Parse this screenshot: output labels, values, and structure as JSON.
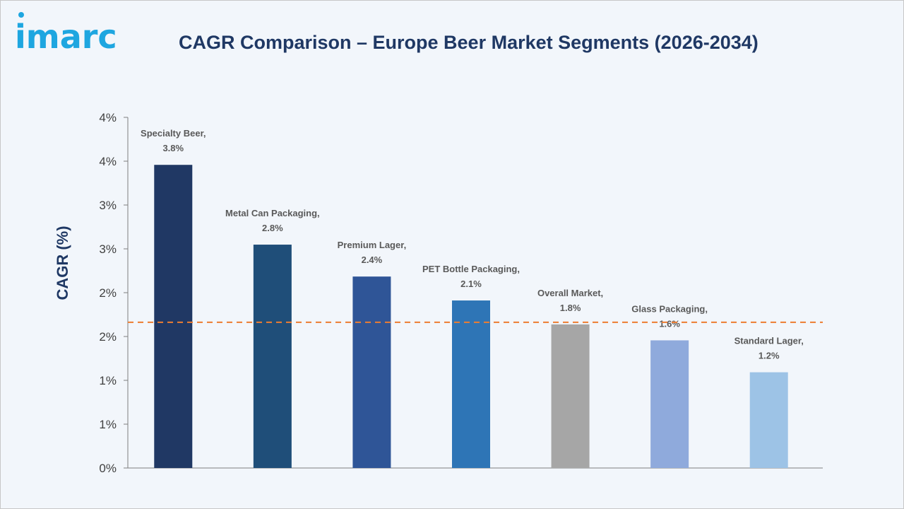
{
  "brand": {
    "logo_text": "imarc"
  },
  "chart_data": {
    "type": "bar",
    "title": "CAGR Comparison – Europe Beer Market Segments (2026-2034)",
    "ylabel": "CAGR (%)",
    "xlabel": "",
    "ylim": [
      0,
      4
    ],
    "yticks": [
      "0%",
      "1%",
      "1%",
      "2%",
      "2%",
      "3%",
      "3%",
      "4%",
      "4%"
    ],
    "categories": [
      "Specialty Beer",
      "Metal Can Packaging",
      "Premium Lager",
      "PET Bottle Packaging",
      "Overall Market",
      "Glass Packaging",
      "Standard Lager"
    ],
    "values": [
      3.8,
      2.8,
      2.4,
      2.1,
      1.8,
      1.6,
      1.2
    ],
    "label_names": [
      "Specialty Beer,",
      "Metal Can Packaging,",
      "Premium Lager,",
      "PET Bottle Packaging,",
      "Overall Market,",
      "Glass Packaging,",
      "Standard Lager,"
    ],
    "label_values": [
      "3.8%",
      "2.8%",
      "2.4%",
      "2.1%",
      "1.8%",
      "1.6%",
      "1.2%"
    ],
    "colors": [
      "#203864",
      "#1f4e79",
      "#2f5597",
      "#2e75b6",
      "#a6a6a6",
      "#8faadc",
      "#9dc3e6"
    ],
    "reference_line": {
      "value": 1.8,
      "style": "dashed",
      "color": "#ed7d31"
    },
    "grid": false
  }
}
